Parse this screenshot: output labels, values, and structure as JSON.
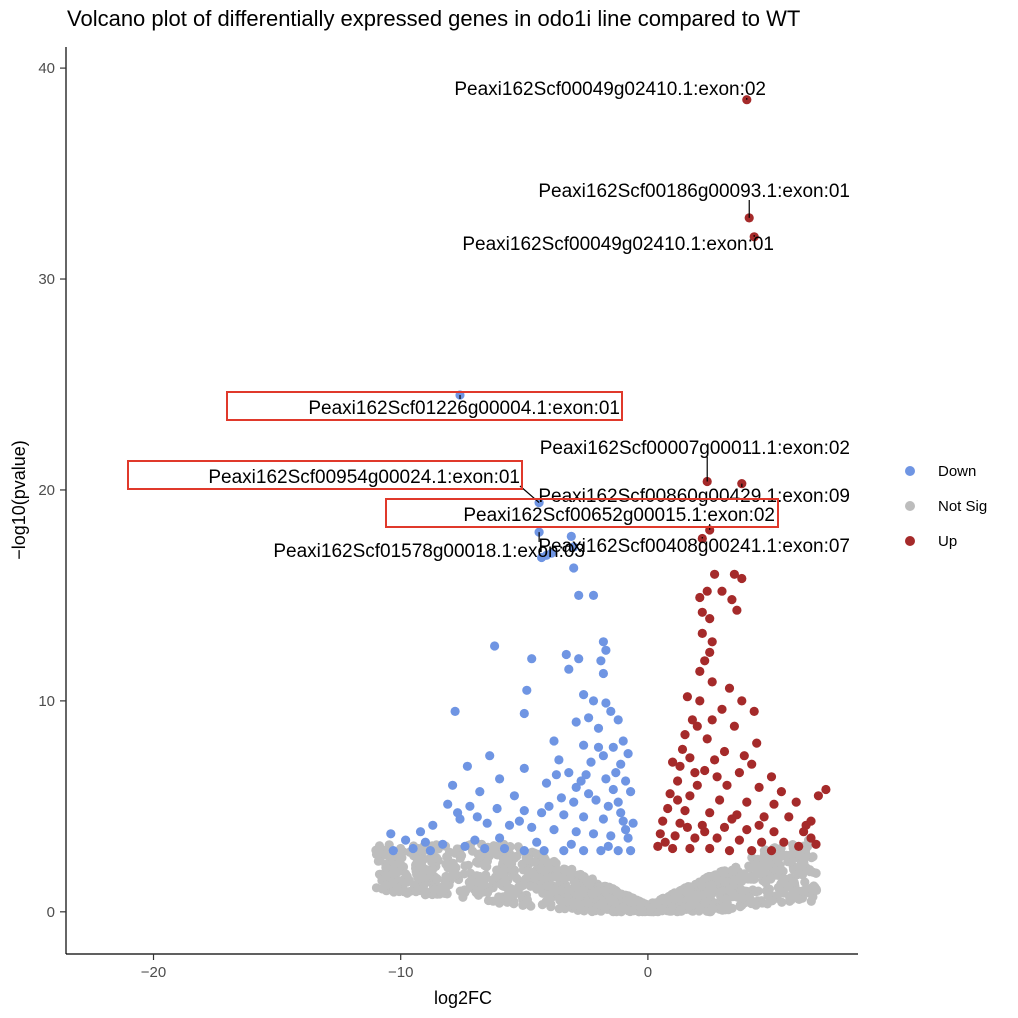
{
  "chart_data": {
    "type": "scatter",
    "title": "Volcano plot of differentially expressed genes in odo1i line compared to WT",
    "xlabel": "log2FC",
    "ylabel": "−log10(pvalue)",
    "xlim": [
      -23.5,
      8.5
    ],
    "ylim": [
      -2,
      41
    ],
    "x_ticks": [
      "−20",
      "−10",
      "0"
    ],
    "x_tick_values": [
      -20,
      -10,
      0
    ],
    "y_ticks": [
      "0",
      "10",
      "20",
      "30",
      "40"
    ],
    "y_tick_values": [
      0,
      10,
      20,
      30,
      40
    ],
    "grid": false,
    "legend_position": "right",
    "legend": [
      {
        "label": "Down",
        "color": "#6f95e3"
      },
      {
        "label": "Not Sig",
        "color": "#bdbdbd"
      },
      {
        "label": "Up",
        "color": "#a52a2a"
      }
    ],
    "series": [
      {
        "name": "Down",
        "color": "#6f95e3",
        "points": [
          [
            -7.6,
            24.5
          ],
          [
            -4.4,
            19.4
          ],
          [
            -4.4,
            18.0
          ],
          [
            -4.3,
            16.8
          ],
          [
            -4.1,
            16.9
          ],
          [
            -3.9,
            17.0
          ],
          [
            -3.1,
            17.8
          ],
          [
            -3.0,
            17.3
          ],
          [
            -3.0,
            16.3
          ],
          [
            -2.8,
            15.0
          ],
          [
            -2.2,
            15.0
          ],
          [
            -6.2,
            12.6
          ],
          [
            -4.7,
            12.0
          ],
          [
            -3.3,
            12.2
          ],
          [
            -3.2,
            11.5
          ],
          [
            -2.8,
            12.0
          ],
          [
            -1.8,
            12.8
          ],
          [
            -1.7,
            12.4
          ],
          [
            -1.9,
            11.9
          ],
          [
            -1.8,
            11.3
          ],
          [
            -4.9,
            10.5
          ],
          [
            -2.6,
            10.3
          ],
          [
            -2.2,
            10.0
          ],
          [
            -1.7,
            9.9
          ],
          [
            -1.5,
            9.5
          ],
          [
            -7.8,
            9.5
          ],
          [
            -5.0,
            9.4
          ],
          [
            -2.9,
            9.0
          ],
          [
            -2.4,
            9.2
          ],
          [
            -1.2,
            9.1
          ],
          [
            -2.0,
            8.7
          ],
          [
            -3.8,
            8.1
          ],
          [
            -2.6,
            7.9
          ],
          [
            -1.4,
            7.8
          ],
          [
            -0.8,
            7.5
          ],
          [
            -1.8,
            7.4
          ],
          [
            -6.4,
            7.4
          ],
          [
            -3.6,
            7.2
          ],
          [
            -2.3,
            7.1
          ],
          [
            -1.1,
            7.0
          ],
          [
            -7.3,
            6.9
          ],
          [
            -5.0,
            6.8
          ],
          [
            -3.2,
            6.6
          ],
          [
            -2.5,
            6.5
          ],
          [
            -1.7,
            6.3
          ],
          [
            -0.9,
            6.2
          ],
          [
            -6.0,
            6.3
          ],
          [
            -4.1,
            6.1
          ],
          [
            -2.9,
            5.9
          ],
          [
            -1.4,
            5.8
          ],
          [
            -0.7,
            5.7
          ],
          [
            -7.9,
            6.0
          ],
          [
            -6.8,
            5.7
          ],
          [
            -5.4,
            5.5
          ],
          [
            -3.5,
            5.4
          ],
          [
            -2.1,
            5.3
          ],
          [
            -1.2,
            5.2
          ],
          [
            -8.1,
            5.1
          ],
          [
            -7.2,
            5.0
          ],
          [
            -6.1,
            4.9
          ],
          [
            -5.0,
            4.8
          ],
          [
            -4.3,
            4.7
          ],
          [
            -3.4,
            4.6
          ],
          [
            -2.6,
            4.5
          ],
          [
            -1.8,
            4.4
          ],
          [
            -1.0,
            4.3
          ],
          [
            -0.6,
            4.2
          ],
          [
            -7.6,
            4.4
          ],
          [
            -6.5,
            4.2
          ],
          [
            -5.6,
            4.1
          ],
          [
            -4.7,
            4.0
          ],
          [
            -3.8,
            3.9
          ],
          [
            -2.9,
            3.8
          ],
          [
            -2.2,
            3.7
          ],
          [
            -1.5,
            3.6
          ],
          [
            -0.8,
            3.5
          ],
          [
            -8.7,
            4.1
          ],
          [
            -9.2,
            3.8
          ],
          [
            -10.4,
            3.7
          ],
          [
            -9.8,
            3.4
          ],
          [
            -9.0,
            3.3
          ],
          [
            -8.3,
            3.2
          ],
          [
            -7.4,
            3.1
          ],
          [
            -6.6,
            3.0
          ],
          [
            -5.8,
            3.0
          ],
          [
            -5.0,
            2.9
          ],
          [
            -4.2,
            2.9
          ],
          [
            -3.4,
            2.9
          ],
          [
            -2.6,
            2.9
          ],
          [
            -1.9,
            2.9
          ],
          [
            -1.2,
            2.9
          ],
          [
            -0.7,
            2.9
          ],
          [
            -10.3,
            2.9
          ],
          [
            -9.5,
            3.0
          ],
          [
            -8.8,
            2.9
          ],
          [
            -7.0,
            3.4
          ],
          [
            -6.0,
            3.5
          ],
          [
            -4.5,
            3.3
          ],
          [
            -3.1,
            3.2
          ],
          [
            -1.6,
            3.1
          ],
          [
            -7.7,
            4.7
          ],
          [
            -6.9,
            4.5
          ],
          [
            -5.2,
            4.3
          ],
          [
            -4.0,
            5.0
          ],
          [
            -3.0,
            5.2
          ],
          [
            -2.4,
            5.6
          ],
          [
            -1.6,
            5.0
          ],
          [
            -1.1,
            4.7
          ],
          [
            -0.9,
            3.9
          ],
          [
            -2.7,
            6.2
          ],
          [
            -3.7,
            6.5
          ],
          [
            -1.3,
            6.6
          ],
          [
            -2.0,
            7.8
          ],
          [
            -1.0,
            8.1
          ]
        ]
      },
      {
        "name": "Up",
        "color": "#a52a2a",
        "points": [
          [
            4.0,
            38.5
          ],
          [
            4.1,
            32.9
          ],
          [
            4.3,
            32.0
          ],
          [
            2.4,
            20.4
          ],
          [
            3.8,
            20.3
          ],
          [
            2.5,
            18.1
          ],
          [
            2.2,
            17.7
          ],
          [
            2.7,
            16.0
          ],
          [
            3.5,
            16.0
          ],
          [
            3.8,
            15.8
          ],
          [
            2.4,
            15.2
          ],
          [
            3.0,
            15.2
          ],
          [
            2.1,
            14.9
          ],
          [
            3.4,
            14.8
          ],
          [
            2.2,
            14.2
          ],
          [
            2.5,
            13.9
          ],
          [
            3.6,
            14.3
          ],
          [
            2.2,
            13.2
          ],
          [
            2.6,
            12.8
          ],
          [
            2.5,
            12.3
          ],
          [
            2.3,
            11.9
          ],
          [
            2.1,
            11.4
          ],
          [
            2.6,
            10.9
          ],
          [
            3.3,
            10.6
          ],
          [
            1.6,
            10.2
          ],
          [
            2.1,
            10.0
          ],
          [
            3.8,
            10.0
          ],
          [
            4.3,
            9.5
          ],
          [
            1.8,
            9.1
          ],
          [
            2.6,
            9.1
          ],
          [
            3.5,
            8.8
          ],
          [
            1.5,
            8.4
          ],
          [
            2.4,
            8.2
          ],
          [
            4.4,
            8.0
          ],
          [
            1.4,
            7.7
          ],
          [
            3.1,
            7.6
          ],
          [
            1.7,
            7.3
          ],
          [
            2.7,
            7.2
          ],
          [
            4.2,
            7.0
          ],
          [
            1.3,
            6.9
          ],
          [
            2.3,
            6.7
          ],
          [
            3.7,
            6.6
          ],
          [
            5.0,
            6.4
          ],
          [
            1.2,
            6.2
          ],
          [
            2.0,
            6.0
          ],
          [
            3.2,
            6.0
          ],
          [
            4.5,
            5.9
          ],
          [
            5.4,
            5.7
          ],
          [
            0.9,
            5.6
          ],
          [
            1.7,
            5.5
          ],
          [
            2.9,
            5.3
          ],
          [
            4.0,
            5.2
          ],
          [
            5.1,
            5.1
          ],
          [
            7.2,
            5.8
          ],
          [
            6.9,
            5.5
          ],
          [
            6.0,
            5.2
          ],
          [
            0.8,
            4.9
          ],
          [
            1.5,
            4.8
          ],
          [
            2.5,
            4.7
          ],
          [
            3.6,
            4.6
          ],
          [
            4.7,
            4.5
          ],
          [
            5.7,
            4.5
          ],
          [
            6.6,
            4.3
          ],
          [
            6.4,
            4.1
          ],
          [
            0.6,
            4.3
          ],
          [
            1.3,
            4.2
          ],
          [
            2.2,
            4.1
          ],
          [
            3.1,
            4.0
          ],
          [
            4.0,
            3.9
          ],
          [
            5.1,
            3.8
          ],
          [
            6.3,
            3.8
          ],
          [
            0.5,
            3.7
          ],
          [
            1.1,
            3.6
          ],
          [
            1.9,
            3.5
          ],
          [
            2.8,
            3.5
          ],
          [
            3.7,
            3.4
          ],
          [
            4.6,
            3.3
          ],
          [
            5.5,
            3.3
          ],
          [
            6.6,
            3.5
          ],
          [
            0.4,
            3.1
          ],
          [
            1.0,
            3.0
          ],
          [
            1.7,
            3.0
          ],
          [
            2.5,
            3.0
          ],
          [
            3.3,
            2.9
          ],
          [
            4.2,
            2.9
          ],
          [
            5.0,
            2.9
          ],
          [
            1.2,
            5.3
          ],
          [
            2.8,
            6.4
          ],
          [
            3.9,
            7.4
          ],
          [
            2.0,
            8.8
          ],
          [
            3.0,
            9.6
          ],
          [
            1.9,
            6.6
          ],
          [
            1.0,
            7.1
          ],
          [
            3.4,
            4.4
          ],
          [
            4.5,
            4.1
          ],
          [
            2.3,
            3.8
          ],
          [
            1.6,
            4.0
          ],
          [
            0.7,
            3.3
          ],
          [
            6.1,
            3.1
          ],
          [
            6.8,
            3.2
          ]
        ]
      }
    ],
    "not_sig_description": "dense cloud of points below about 3.2, spanning log2FC about −11 to 6.5",
    "labels": [
      {
        "text": "Peaxi162Scf00049g02410.1:exon:02",
        "x": 4.0,
        "y": 38.5,
        "boxed": false
      },
      {
        "text": "Peaxi162Scf00186g00093.1:exon:01",
        "x": 4.1,
        "y": 32.9,
        "boxed": false
      },
      {
        "text": "Peaxi162Scf00049g02410.1:exon:01",
        "x": 4.3,
        "y": 32.0,
        "boxed": false
      },
      {
        "text": "Peaxi162Scf01226g00004.1:exon:01",
        "x": -7.6,
        "y": 24.5,
        "boxed": true
      },
      {
        "text": "Peaxi162Scf00007g00011.1:exon:02",
        "x": 2.4,
        "y": 20.4,
        "boxed": false
      },
      {
        "text": "Peaxi162Scf00954g00024.1:exon:01",
        "x": -4.4,
        "y": 19.4,
        "boxed": true
      },
      {
        "text": "Peaxi162Scf00860g00429.1:exon:09",
        "x": 3.8,
        "y": 20.3,
        "boxed": false
      },
      {
        "text": "Peaxi162Scf00652g00015.1:exon:02",
        "x": 2.5,
        "y": 18.1,
        "boxed": true
      },
      {
        "text": "Peaxi162Scf01578g00018.1:exon:03",
        "x": -4.4,
        "y": 18.0,
        "boxed": false
      },
      {
        "text": "Peaxi162Scf00408g00241.1:exon:07",
        "x": 2.2,
        "y": 17.7,
        "boxed": false
      }
    ]
  }
}
